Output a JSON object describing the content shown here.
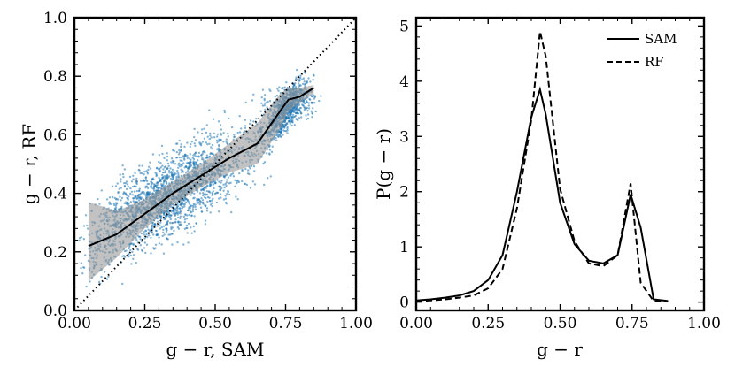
{
  "chart_data": [
    {
      "type": "scatter",
      "title": "",
      "xlabel": "g − r, SAM",
      "ylabel": "g − r, RF",
      "xlim": [
        0.0,
        1.0
      ],
      "ylim": [
        0.0,
        1.0
      ],
      "xticks": [
        "0.00",
        "0.25",
        "0.50",
        "0.75",
        "1.00"
      ],
      "yticks": [
        "0.0",
        "0.2",
        "0.4",
        "0.6",
        "0.8",
        "1.0"
      ],
      "colors": {
        "points": "#1f77b4",
        "band": "#9a9a9a",
        "median": "#000000",
        "identity": "#000000"
      },
      "scatter_cloud": {
        "description": "density of points concentrated along the relation",
        "ridge": {
          "x": [
            0.02,
            0.15,
            0.35,
            0.5,
            0.6,
            0.7,
            0.8
          ],
          "y": [
            0.17,
            0.3,
            0.4,
            0.48,
            0.54,
            0.64,
            0.73
          ]
        }
      },
      "median_line": {
        "name": "median",
        "x": [
          0.05,
          0.15,
          0.25,
          0.35,
          0.45,
          0.55,
          0.65,
          0.73,
          0.76,
          0.8,
          0.85
        ],
        "y": [
          0.22,
          0.26,
          0.33,
          0.4,
          0.46,
          0.52,
          0.57,
          0.68,
          0.72,
          0.73,
          0.76
        ]
      },
      "band": {
        "x": [
          0.05,
          0.15,
          0.25,
          0.35,
          0.45,
          0.55,
          0.65,
          0.73,
          0.76,
          0.8,
          0.85
        ],
        "lower": [
          0.1,
          0.18,
          0.28,
          0.36,
          0.42,
          0.47,
          0.5,
          0.62,
          0.68,
          0.71,
          0.74
        ],
        "upper": [
          0.37,
          0.34,
          0.38,
          0.44,
          0.5,
          0.57,
          0.64,
          0.74,
          0.76,
          0.76,
          0.77
        ]
      },
      "identity_line": {
        "x": [
          0.0,
          1.0
        ],
        "y": [
          0.0,
          1.0
        ]
      }
    },
    {
      "type": "line",
      "title": "",
      "xlabel": "g − r",
      "ylabel": "P(g − r)",
      "xlim": [
        0.0,
        1.0
      ],
      "ylim": [
        -0.15,
        5.15
      ],
      "xticks": [
        "0.00",
        "0.25",
        "0.50",
        "0.75",
        "1.00"
      ],
      "yticks": [
        "0",
        "1",
        "2",
        "3",
        "4",
        "5"
      ],
      "legend": {
        "position": "top-right",
        "entries": [
          "SAM",
          "RF"
        ]
      },
      "series": [
        {
          "name": "SAM",
          "style": "solid",
          "x": [
            0.0,
            0.05,
            0.1,
            0.15,
            0.2,
            0.25,
            0.3,
            0.35,
            0.4,
            0.43,
            0.45,
            0.5,
            0.55,
            0.6,
            0.65,
            0.7,
            0.745,
            0.78,
            0.825,
            0.875
          ],
          "y": [
            0.03,
            0.05,
            0.08,
            0.12,
            0.2,
            0.4,
            0.85,
            2.0,
            3.35,
            3.85,
            3.4,
            1.8,
            1.05,
            0.75,
            0.7,
            0.85,
            1.95,
            1.35,
            0.05,
            0.02
          ]
        },
        {
          "name": "RF",
          "style": "dashed",
          "x": [
            0.0,
            0.05,
            0.1,
            0.15,
            0.2,
            0.25,
            0.3,
            0.35,
            0.4,
            0.43,
            0.45,
            0.5,
            0.55,
            0.6,
            0.65,
            0.7,
            0.745,
            0.78,
            0.825,
            0.875
          ],
          "y": [
            0.02,
            0.03,
            0.05,
            0.08,
            0.12,
            0.25,
            0.6,
            1.7,
            3.3,
            4.9,
            4.45,
            2.05,
            1.1,
            0.7,
            0.65,
            0.85,
            2.15,
            0.35,
            0.02,
            0.01
          ]
        }
      ]
    }
  ]
}
